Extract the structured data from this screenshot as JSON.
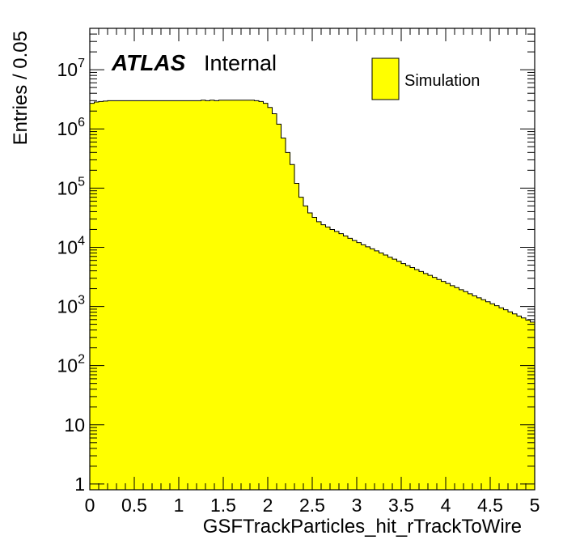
{
  "chart_data": {
    "type": "histogram",
    "xlabel": "GSFTrackParticles_hit_rTrackToWire",
    "ylabel": "Entries / 0.05",
    "xlim": [
      0,
      5
    ],
    "ylim": [
      0.8,
      50000000
    ],
    "yscale": "log",
    "bin_width": 0.05,
    "x_ticks": [
      "0",
      "0.5",
      "1",
      "1.5",
      "2",
      "2.5",
      "3",
      "3.5",
      "4",
      "4.5",
      "5"
    ],
    "y_ticks": [
      {
        "base": "1",
        "exp": ""
      },
      {
        "base": "10",
        "exp": ""
      },
      {
        "base": "10",
        "exp": "2"
      },
      {
        "base": "10",
        "exp": "3"
      },
      {
        "base": "10",
        "exp": "4"
      },
      {
        "base": "10",
        "exp": "5"
      },
      {
        "base": "10",
        "exp": "6"
      },
      {
        "base": "10",
        "exp": "7"
      }
    ],
    "atlas_label": "ATLAS",
    "atlas_status": "Internal",
    "legend_position": "top-right",
    "series": [
      {
        "name": "Simulation",
        "color": "#ffff00",
        "values": [
          2700000,
          2850000,
          2900000,
          2950000,
          3000000,
          3000000,
          3000000,
          3000000,
          3000000,
          3000000,
          3000000,
          3000000,
          3000000,
          3000000,
          3000000,
          3000000,
          3000000,
          3000000,
          3000000,
          3000000,
          3000000,
          3000000,
          3000000,
          3000000,
          3000000,
          3050000,
          3000000,
          3050000,
          3000000,
          3050000,
          3050000,
          3050000,
          3050000,
          3050000,
          3050000,
          3050000,
          3050000,
          3000000,
          2900000,
          2700000,
          2300000,
          1800000,
          1200000,
          700000,
          400000,
          250000,
          120000,
          70000,
          50000,
          38000,
          32000,
          27000,
          24000,
          22000,
          20000,
          18500,
          17000,
          15500,
          14200,
          13000,
          12000,
          11000,
          10200,
          9400,
          8700,
          8000,
          7400,
          6800,
          6300,
          5800,
          5300,
          4900,
          4550,
          4200,
          3900,
          3600,
          3350,
          3100,
          2850,
          2650,
          2450,
          2250,
          2080,
          1920,
          1780,
          1640,
          1510,
          1400,
          1300,
          1200,
          1110,
          1030,
          950,
          880,
          810,
          750,
          690,
          640,
          590,
          545
        ]
      }
    ]
  }
}
